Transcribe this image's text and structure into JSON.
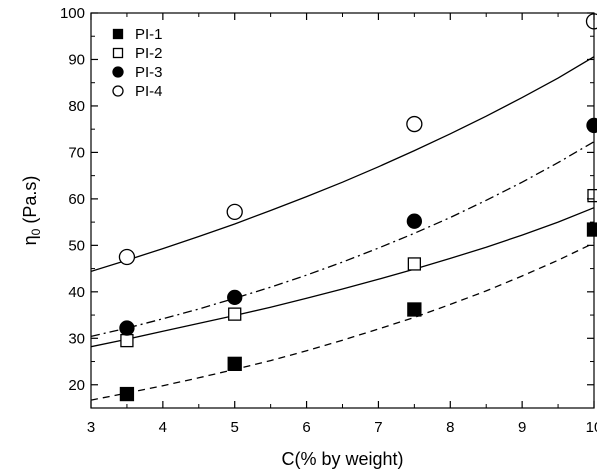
{
  "chart_data": {
    "type": "scatter",
    "xlabel": "C(% by weight)",
    "ylabel_main": "η",
    "ylabel_sub": "0",
    "ylabel_unit": " (Pa.s)",
    "xlim": [
      3,
      10
    ],
    "ylim": [
      15,
      100
    ],
    "xticks": [
      3,
      4,
      5,
      6,
      7,
      8,
      9,
      10
    ],
    "xtick_labels": [
      "3",
      "4",
      "5",
      "6",
      "7",
      "8",
      "9",
      "10"
    ],
    "yticks": [
      20,
      30,
      40,
      50,
      60,
      70,
      80,
      90,
      100
    ],
    "ytick_labels": [
      "20",
      "30",
      "40",
      "50",
      "60",
      "70",
      "80",
      "90",
      "100"
    ],
    "grid": false,
    "legend_position": "top-left",
    "series": [
      {
        "name": "PI-1",
        "marker": "filled-square",
        "line_style": "dashed",
        "x": [
          3.5,
          5,
          7.5,
          10
        ],
        "y": [
          18.0,
          24.5,
          36.2,
          53.4
        ],
        "fit": [
          [
            3.0,
            16.7
          ],
          [
            3.5,
            18.2
          ],
          [
            4.0,
            19.8
          ],
          [
            4.5,
            21.5
          ],
          [
            5.0,
            23.3
          ],
          [
            5.5,
            25.2
          ],
          [
            6.0,
            27.3
          ],
          [
            6.5,
            29.6
          ],
          [
            7.0,
            32.0
          ],
          [
            7.5,
            34.5
          ],
          [
            8.0,
            37.3
          ],
          [
            8.5,
            40.2
          ],
          [
            9.0,
            43.4
          ],
          [
            9.5,
            46.8
          ],
          [
            10.0,
            50.5
          ]
        ]
      },
      {
        "name": "PI-2",
        "marker": "open-square",
        "line_style": "solid",
        "x": [
          3.5,
          5,
          7.5,
          10
        ],
        "y": [
          29.5,
          35.2,
          46.0,
          60.7
        ],
        "fit": [
          [
            3.0,
            28.2
          ],
          [
            3.5,
            29.8
          ],
          [
            4.0,
            31.5
          ],
          [
            4.5,
            33.2
          ],
          [
            5.0,
            34.9
          ],
          [
            5.5,
            36.7
          ],
          [
            6.0,
            38.6
          ],
          [
            6.5,
            40.6
          ],
          [
            7.0,
            42.7
          ],
          [
            7.5,
            44.9
          ],
          [
            8.0,
            47.2
          ],
          [
            8.5,
            49.6
          ],
          [
            9.0,
            52.2
          ],
          [
            9.5,
            55.0
          ],
          [
            10.0,
            58.1
          ],
          [
            10.1,
            60.8
          ]
        ]
      },
      {
        "name": "PI-3",
        "marker": "filled-circle",
        "line_style": "dash-dot",
        "x": [
          3.5,
          5,
          7.5,
          10
        ],
        "y": [
          32.2,
          38.8,
          55.2,
          75.8
        ],
        "fit": [
          [
            3.0,
            30.4
          ],
          [
            3.5,
            32.2
          ],
          [
            4.0,
            34.2
          ],
          [
            4.5,
            36.3
          ],
          [
            5.0,
            38.6
          ],
          [
            5.5,
            41.0
          ],
          [
            6.0,
            43.6
          ],
          [
            6.5,
            46.4
          ],
          [
            7.0,
            49.4
          ],
          [
            7.5,
            52.6
          ],
          [
            8.0,
            56.0
          ],
          [
            8.5,
            59.7
          ],
          [
            9.0,
            63.6
          ],
          [
            9.5,
            67.8
          ],
          [
            10.0,
            72.3
          ],
          [
            10.1,
            76.5
          ]
        ]
      },
      {
        "name": "PI-4",
        "marker": "open-circle",
        "line_style": "solid",
        "x": [
          3.5,
          5,
          7.5,
          10
        ],
        "y": [
          47.5,
          57.2,
          76.1,
          98.2
        ],
        "fit": [
          [
            3.0,
            44.4
          ],
          [
            3.5,
            46.8
          ],
          [
            4.0,
            49.3
          ],
          [
            4.5,
            51.9
          ],
          [
            5.0,
            54.6
          ],
          [
            5.5,
            57.5
          ],
          [
            6.0,
            60.5
          ],
          [
            6.5,
            63.6
          ],
          [
            7.0,
            66.9
          ],
          [
            7.5,
            70.4
          ],
          [
            8.0,
            74.0
          ],
          [
            8.5,
            77.8
          ],
          [
            9.0,
            81.8
          ],
          [
            9.5,
            86.0
          ],
          [
            10.0,
            90.6
          ],
          [
            10.1,
            98.4
          ]
        ]
      }
    ]
  }
}
